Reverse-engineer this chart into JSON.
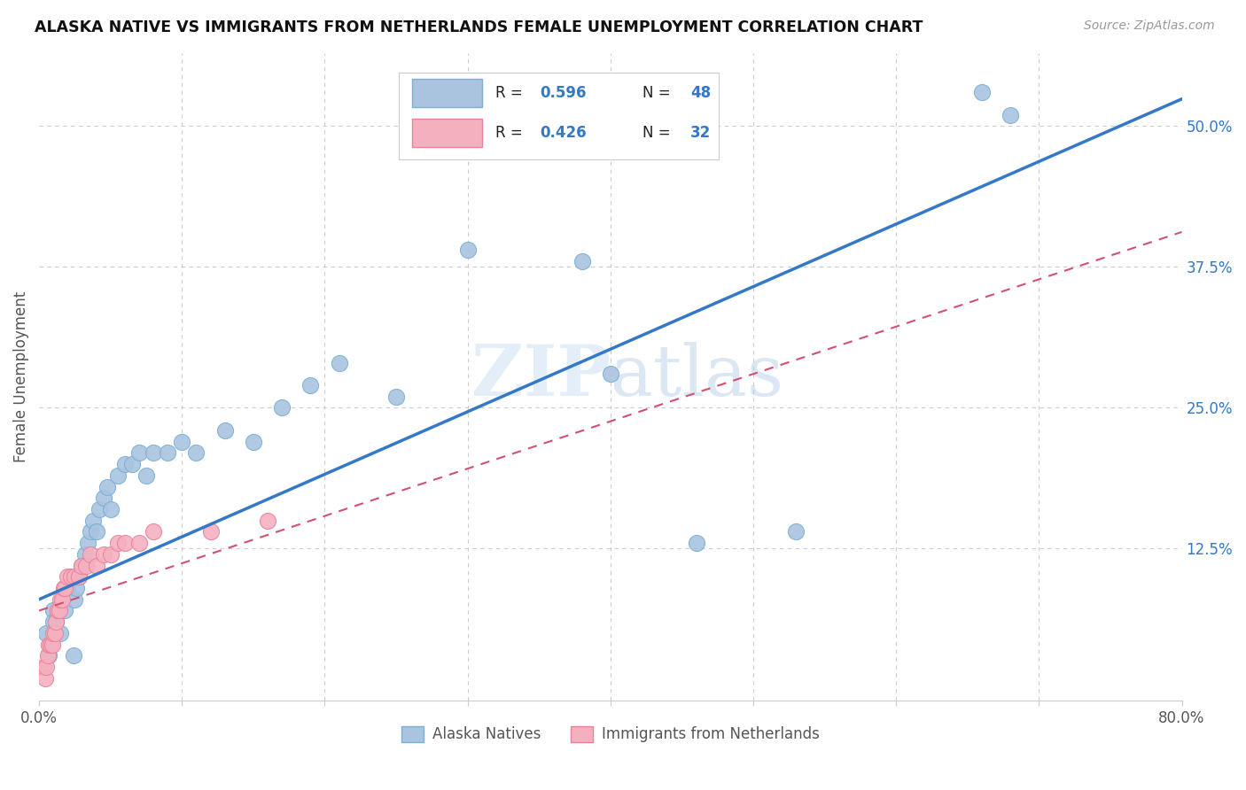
{
  "title": "ALASKA NATIVE VS IMMIGRANTS FROM NETHERLANDS FEMALE UNEMPLOYMENT CORRELATION CHART",
  "source": "Source: ZipAtlas.com",
  "ylabel": "Female Unemployment",
  "xlim": [
    0,
    0.8
  ],
  "ylim": [
    -0.01,
    0.565
  ],
  "ytick_labels_right": [
    "50.0%",
    "37.5%",
    "25.0%",
    "12.5%"
  ],
  "ytick_vals_right": [
    0.5,
    0.375,
    0.25,
    0.125
  ],
  "grid_color": "#cccccc",
  "background_color": "#ffffff",
  "watermark": "ZIPatlas",
  "scatter1_color": "#aac4e0",
  "scatter1_edge": "#7bafd4",
  "scatter2_color": "#f5b0c0",
  "scatter2_edge": "#e8849a",
  "line1_color": "#3478c8",
  "line2_color": "#d45070",
  "legend_r_color": "#3478c8",
  "legend_n_color": "#3478c8",
  "alaska_x": [
    0.005,
    0.007,
    0.008,
    0.01,
    0.01,
    0.012,
    0.013,
    0.015,
    0.016,
    0.018,
    0.02,
    0.022,
    0.024,
    0.025,
    0.026,
    0.028,
    0.03,
    0.032,
    0.034,
    0.036,
    0.038,
    0.04,
    0.042,
    0.045,
    0.048,
    0.05,
    0.055,
    0.06,
    0.065,
    0.07,
    0.075,
    0.08,
    0.09,
    0.1,
    0.11,
    0.13,
    0.15,
    0.17,
    0.19,
    0.21,
    0.25,
    0.3,
    0.38,
    0.4,
    0.46,
    0.53,
    0.66,
    0.68
  ],
  "alaska_y": [
    0.05,
    0.03,
    0.04,
    0.07,
    0.06,
    0.06,
    0.07,
    0.05,
    0.08,
    0.07,
    0.09,
    0.1,
    0.03,
    0.08,
    0.09,
    0.1,
    0.11,
    0.12,
    0.13,
    0.14,
    0.15,
    0.14,
    0.16,
    0.17,
    0.18,
    0.16,
    0.19,
    0.2,
    0.2,
    0.21,
    0.19,
    0.21,
    0.21,
    0.22,
    0.21,
    0.23,
    0.22,
    0.25,
    0.27,
    0.29,
    0.26,
    0.39,
    0.38,
    0.28,
    0.13,
    0.14,
    0.53,
    0.51
  ],
  "netherlands_x": [
    0.003,
    0.004,
    0.005,
    0.006,
    0.007,
    0.008,
    0.009,
    0.01,
    0.011,
    0.012,
    0.013,
    0.014,
    0.015,
    0.016,
    0.017,
    0.018,
    0.02,
    0.022,
    0.025,
    0.028,
    0.03,
    0.033,
    0.036,
    0.04,
    0.045,
    0.05,
    0.055,
    0.06,
    0.07,
    0.08,
    0.12,
    0.16
  ],
  "netherlands_y": [
    0.02,
    0.01,
    0.02,
    0.03,
    0.04,
    0.04,
    0.04,
    0.05,
    0.05,
    0.06,
    0.07,
    0.07,
    0.08,
    0.08,
    0.09,
    0.09,
    0.1,
    0.1,
    0.1,
    0.1,
    0.11,
    0.11,
    0.12,
    0.11,
    0.12,
    0.12,
    0.13,
    0.13,
    0.13,
    0.14,
    0.14,
    0.15
  ],
  "line1_intercept": 0.08,
  "line1_slope": 0.555,
  "line2_intercept": 0.07,
  "line2_slope": 0.42
}
